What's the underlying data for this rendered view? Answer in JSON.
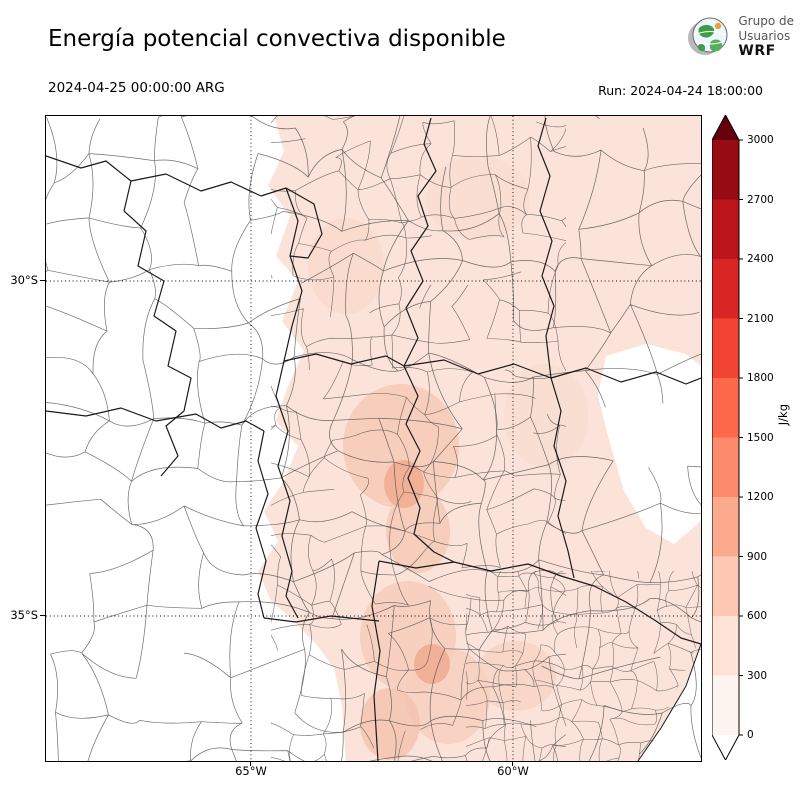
{
  "header": {
    "title": "Energía potencial convectiva disponible",
    "logo": {
      "line1": "Grupo de",
      "line2": "Usuarios",
      "line3": "WRF"
    }
  },
  "subheader": {
    "valid_time": "2024-04-25 00:00:00 ARG",
    "run": "Run: 2024-04-24 18:00:00"
  },
  "map": {
    "y_ticks": [
      "30°S",
      "35°S"
    ],
    "x_ticks": [
      "65°W",
      "60°W"
    ]
  },
  "colorbar": {
    "unit": "J/kg",
    "tick_labels": [
      "3000",
      "2700",
      "2400",
      "2100",
      "1800",
      "1500",
      "1200",
      "900",
      "600",
      "300",
      "0"
    ],
    "segment_colors_top_to_bottom": [
      "#970b13",
      "#bb151a",
      "#d92523",
      "#f14432",
      "#fb694a",
      "#fc8a6b",
      "#fcaa8e",
      "#fdc9b4",
      "#fee3d6",
      "#fff5f0"
    ],
    "over_color": "#67000d",
    "under_color": "#ffffff"
  },
  "chart_data": {
    "type": "heatmap",
    "title": "Energía potencial convectiva disponible",
    "units": "J/kg",
    "valid_time": "2024-04-25 00:00:00 ARG",
    "run": "2024-04-24 18:00:00",
    "colorbar_levels": [
      0,
      300,
      600,
      900,
      1200,
      1500,
      1800,
      2100,
      2400,
      2700,
      3000
    ],
    "colorbar_extends": "both",
    "x_ticks": [
      "65°W",
      "60°W"
    ],
    "y_ticks": [
      "30°S",
      "35°S"
    ],
    "field_summary": "CAPE shading mostly in the 0-900 J/kg range over central and eastern Argentina; near zero (white) over the western Andean provinces and parts of the east"
  }
}
